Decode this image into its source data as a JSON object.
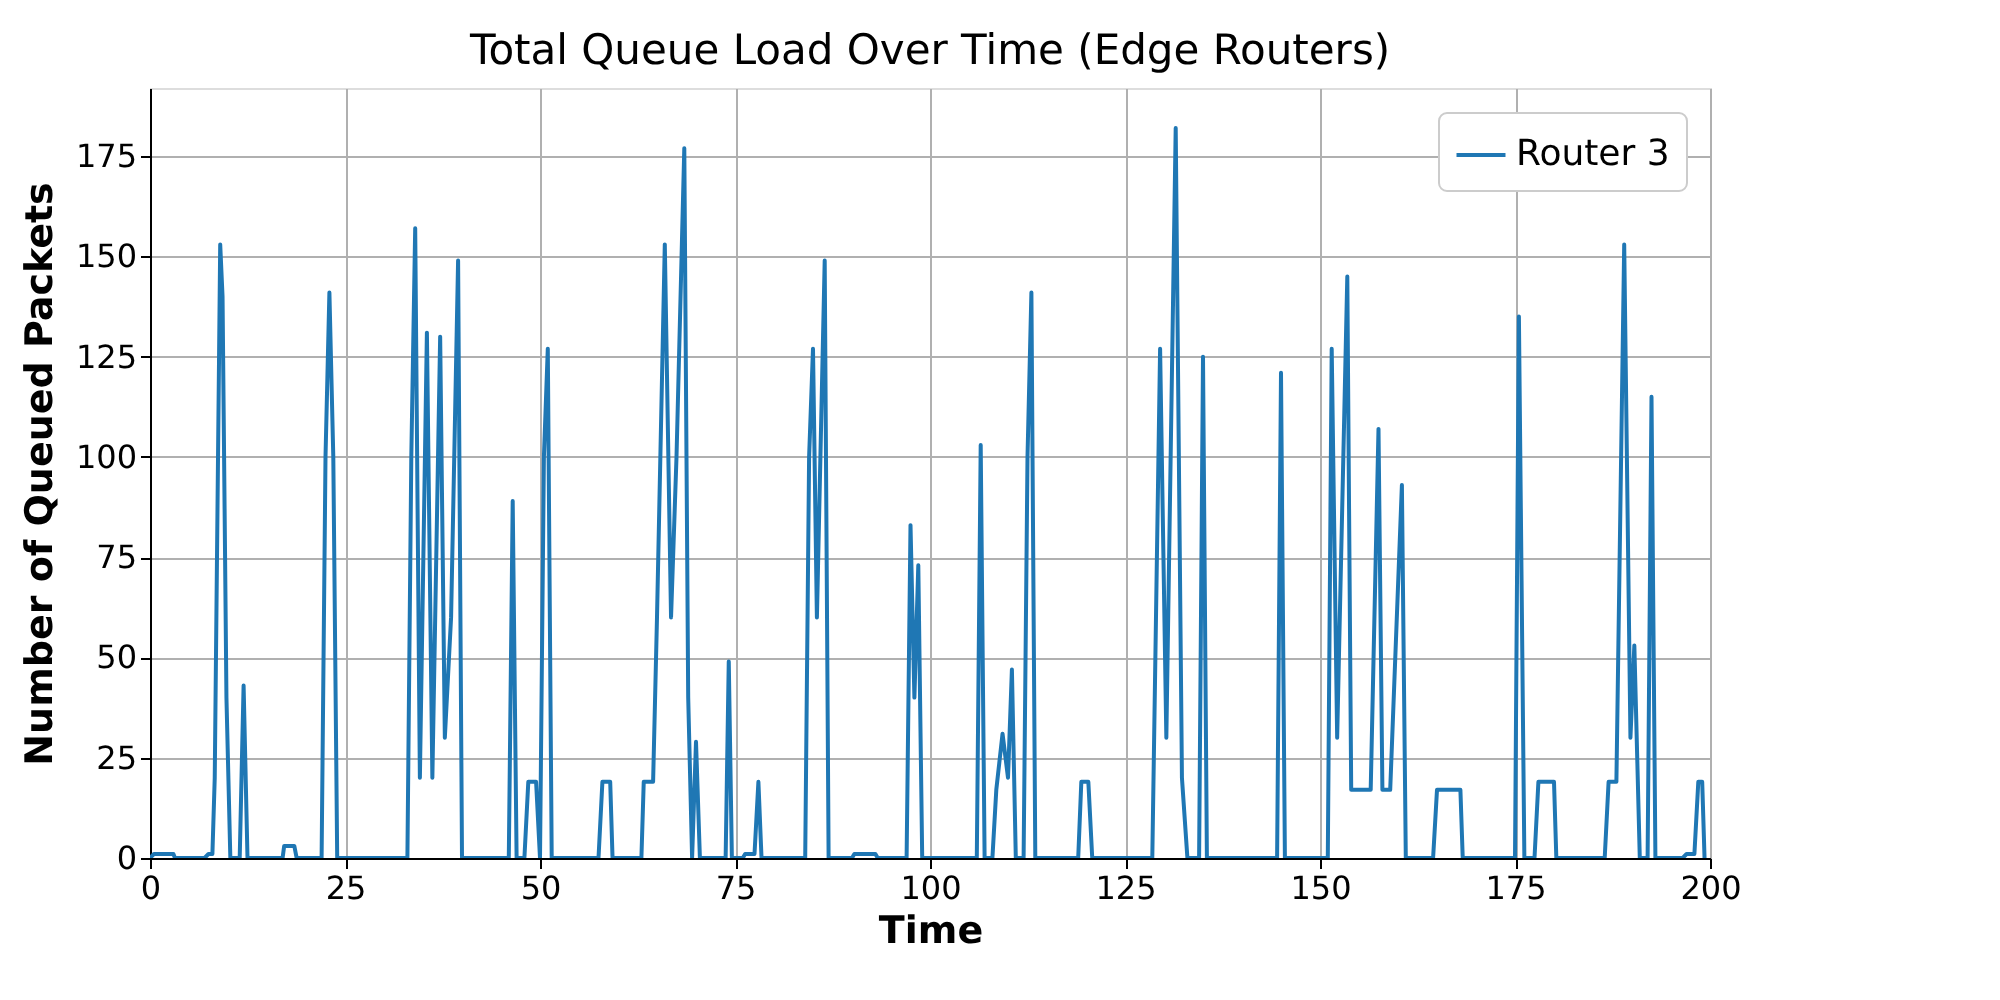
{
  "chart_data": {
    "type": "line",
    "title": "Total Queue Load Over Time (Edge Routers)",
    "xlabel": "Time",
    "ylabel": "Number of Queued Packets",
    "x": [
      0,
      0.5,
      3,
      3.2,
      7,
      7.5,
      8,
      8.3,
      9,
      9.3,
      9.8,
      10.3,
      11.5,
      12,
      12.5,
      17,
      17.2,
      18.5,
      18.8,
      22,
      22.5,
      23,
      23.5,
      24,
      33,
      33.5,
      34,
      34.6,
      35.5,
      36.2,
      37.2,
      37.8,
      38.6,
      39.5,
      40,
      46,
      46.5,
      47,
      48,
      48.5,
      49.5,
      50,
      50.5,
      51,
      51.5,
      57.5,
      58,
      59,
      59.3,
      63,
      63.3,
      64.5,
      65,
      66,
      66.8,
      67.5,
      68.5,
      69,
      69.5,
      70,
      70.5,
      73.8,
      74.2,
      74.6,
      76,
      76.3,
      77.5,
      78,
      78.4,
      84,
      84.5,
      85,
      85.5,
      86.5,
      87,
      90,
      90.3,
      93,
      93.3,
      97,
      97.5,
      98,
      98.5,
      99,
      106,
      106.5,
      107,
      108,
      108.5,
      109.3,
      110,
      110.5,
      111,
      112,
      112.5,
      113,
      113.5,
      119,
      119.4,
      120.3,
      120.8,
      128.5,
      129.5,
      130.3,
      131.5,
      132.3,
      133,
      134.5,
      135,
      135.5,
      144.5,
      145,
      145.5,
      151,
      151.5,
      152.2,
      153.5,
      154,
      156.5,
      157.5,
      158,
      159,
      160.5,
      161,
      164.5,
      165,
      168,
      168.3,
      175,
      175.5,
      176.2,
      177.5,
      178,
      180,
      180.3,
      186.5,
      187,
      188,
      189,
      189.8,
      190.3,
      191,
      192,
      192.5,
      193,
      196.5,
      197,
      198,
      198.5,
      199,
      199.3
    ],
    "series": [
      {
        "name": "Router 3",
        "color": "#1f77b4",
        "values": [
          0,
          1,
          1,
          0,
          0,
          1,
          1,
          20,
          153,
          140,
          40,
          0,
          0,
          43,
          0,
          0,
          3,
          3,
          0,
          0,
          100,
          141,
          100,
          0,
          0,
          100,
          157,
          20,
          131,
          20,
          130,
          30,
          60,
          149,
          0,
          0,
          89,
          0,
          0,
          19,
          19,
          0,
          100,
          127,
          0,
          0,
          19,
          19,
          0,
          0,
          19,
          19,
          60,
          153,
          60,
          100,
          177,
          40,
          0,
          29,
          0,
          0,
          49,
          0,
          0,
          1,
          1,
          19,
          0,
          0,
          100,
          127,
          60,
          149,
          0,
          0,
          1,
          1,
          0,
          0,
          83,
          40,
          73,
          0,
          0,
          103,
          0,
          0,
          17,
          31,
          20,
          47,
          0,
          0,
          100,
          141,
          0,
          0,
          19,
          19,
          0,
          0,
          127,
          30,
          182,
          20,
          0,
          0,
          125,
          0,
          0,
          121,
          0,
          0,
          127,
          30,
          145,
          17,
          17,
          107,
          17,
          17,
          93,
          0,
          0,
          17,
          17,
          0,
          0,
          135,
          0,
          0,
          19,
          19,
          0,
          0,
          19,
          19,
          153,
          30,
          53,
          0,
          0,
          115,
          0,
          0,
          1,
          1,
          19,
          19,
          0
        ]
      }
    ],
    "xlim": [
      0,
      200
    ],
    "xticks": [
      0,
      25,
      50,
      75,
      100,
      125,
      150,
      175,
      200
    ],
    "ylim": [
      0,
      192
    ],
    "yticks": [
      0,
      25,
      50,
      75,
      100,
      125,
      150,
      175
    ],
    "grid": true,
    "legend": "top right"
  }
}
